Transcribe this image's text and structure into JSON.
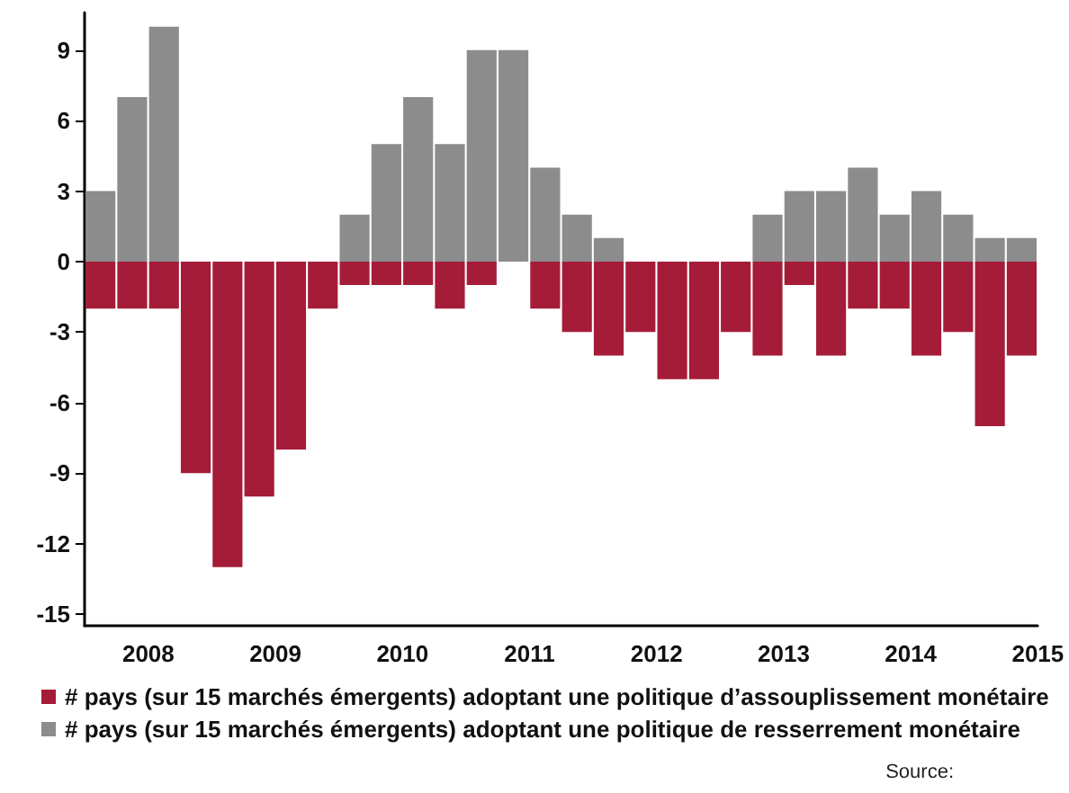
{
  "chart_data": {
    "type": "bar",
    "stacked": true,
    "categories": [
      null,
      "2008",
      null,
      null,
      null,
      "2009",
      null,
      null,
      null,
      "2010",
      null,
      null,
      null,
      "2011",
      null,
      null,
      null,
      "2012",
      null,
      null,
      null,
      "2013",
      null,
      null,
      null,
      "2014",
      null,
      null,
      null,
      "2015"
    ],
    "series": [
      {
        "name": "# pays (sur 15 marchés émergents) adoptant une politique d’assouplissement monétaire",
        "color": "#a51c38",
        "values": [
          -2,
          -2,
          -2,
          -9,
          -13,
          -10,
          -8,
          -2,
          -1,
          -1,
          -1,
          -2,
          -1,
          0,
          -2,
          -3,
          -4,
          -3,
          -5,
          -5,
          -3,
          -4,
          -1,
          -4,
          -2,
          -2,
          -4,
          -3,
          -7,
          -4
        ]
      },
      {
        "name": "# pays (sur 15 marchés émergents) adoptant une politique de resserrement monétaire",
        "color": "#8c8c8c",
        "values": [
          3,
          7,
          10,
          0,
          0,
          0,
          0,
          0,
          2,
          5,
          7,
          5,
          9,
          9,
          4,
          2,
          1,
          0,
          0,
          0,
          0,
          2,
          3,
          3,
          4,
          2,
          3,
          2,
          1,
          1
        ]
      }
    ],
    "ylim": [
      -15.5,
      10.6
    ],
    "yticks": [
      -15,
      -12,
      -9,
      -6,
      -3,
      0,
      3,
      6,
      9
    ],
    "grid": false,
    "legend": "bottom",
    "annotations": [
      "Source:"
    ]
  }
}
